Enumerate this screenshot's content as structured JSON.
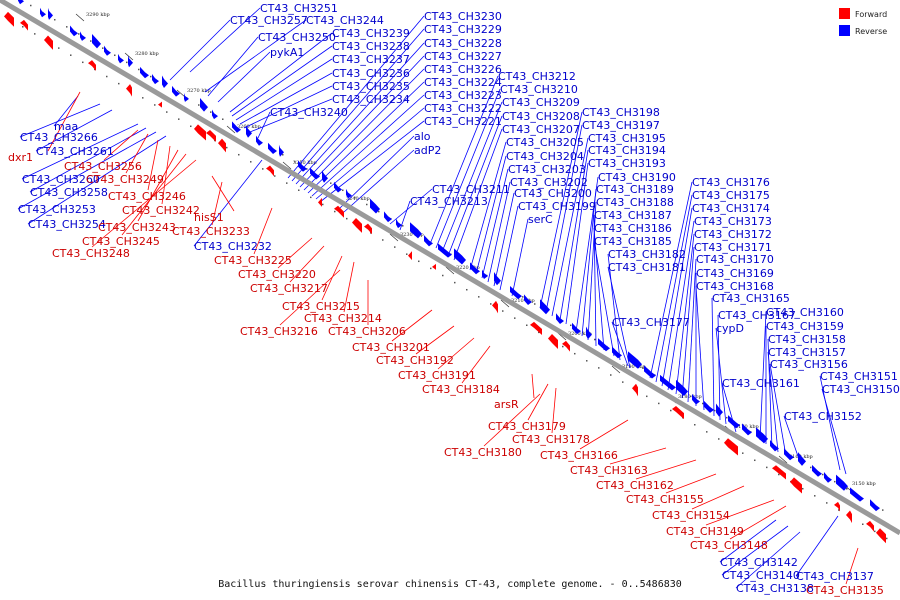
{
  "legend": {
    "items": [
      {
        "label": "Forward",
        "color": "#ff0000"
      },
      {
        "label": "Reverse",
        "color": "#0000ff"
      }
    ]
  },
  "caption": "Bacillus thuringiensis serovar chinensis CT-43, complete genome. - 0..5486830",
  "ticks": [
    "3290 kbp",
    "3280 kbp",
    "3270 kbp",
    "3260 kbp",
    "3250 kbp",
    "3240 kbp",
    "3230 kbp",
    "3220 kbp",
    "3210 kbp",
    "3200 kbp",
    "3190 kbp",
    "3180 kbp",
    "3170 kbp",
    "3160 kbp",
    "3150 kbp"
  ],
  "colors": {
    "forward": "#ff0000",
    "reverse": "#0000ff",
    "backbone": "#9a9a9a",
    "forward_label": "#cc0000",
    "reverse_label": "#0000cc"
  },
  "genes": {
    "reverse": [
      "CT43_CH3251",
      "CT43_CH3257",
      "CT43_CH3244",
      "CT43_CH3250",
      "pykA1",
      "CT43_CH3239",
      "CT43_CH3238",
      "CT43_CH3237",
      "CT43_CH3236",
      "CT43_CH3235",
      "CT43_CH3234",
      "CT43_CH3240",
      "CT43_CH3230",
      "CT43_CH3229",
      "CT43_CH3228",
      "CT43_CH3227",
      "CT43_CH3226",
      "CT43_CH3224",
      "CT43_CH3223",
      "CT43_CH3222",
      "CT43_CH3221",
      "alo",
      "adP2",
      "CT43_CH3211",
      "CT43_CH3213",
      "CT43_CH3212",
      "CT43_CH3210",
      "CT43_CH3209",
      "CT43_CH3208",
      "CT43_CH3207",
      "CT43_CH3205",
      "CT43_CH3204",
      "CT43_CH3203",
      "CT43_CH3202",
      "CT43_CH3200",
      "CT43_CH3199",
      "serC",
      "CT43_CH3198",
      "CT43_CH3197",
      "CT43_CH3195",
      "CT43_CH3194",
      "CT43_CH3193",
      "CT43_CH3190",
      "CT43_CH3189",
      "CT43_CH3188",
      "CT43_CH3187",
      "CT43_CH3186",
      "CT43_CH3185",
      "CT43_CH3182",
      "CT43_CH3181",
      "CT43_CH3176",
      "CT43_CH3175",
      "CT43_CH3174",
      "CT43_CH3173",
      "CT43_CH3172",
      "CT43_CH3171",
      "CT43_CH3170",
      "CT43_CH3169",
      "CT43_CH3168",
      "CT43_CH3165",
      "CT43_CH3177",
      "CT43_CH3167",
      "cypD",
      "CT43_CH3161",
      "CT43_CH3160",
      "CT43_CH3159",
      "CT43_CH3158",
      "CT43_CH3157",
      "CT43_CH3156",
      "CT43_CH3151",
      "CT43_CH3150",
      "CT43_CH3152",
      "maa",
      "CT43_CH3266",
      "CT43_CH3261",
      "CT43_CH3260",
      "CT43_CH3258",
      "CT43_CH3253",
      "CT43_CH3254",
      "CT43_CH3232",
      "CT43_CH3142",
      "CT43_CH3140",
      "CT43_CH3138",
      "CT43_CH3137"
    ],
    "forward": [
      "dxr1",
      "CT43_CH3256",
      "CT43_CH3249",
      "CT43_CH3246",
      "CT43_CH3242",
      "CT43_CH3243",
      "CT43_CH3245",
      "CT43_CH3248",
      "hisS1",
      "CT43_CH3233",
      "CT43_CH3225",
      "CT43_CH3220",
      "CT43_CH3217",
      "CT43_CH3215",
      "CT43_CH3214",
      "CT43_CH3216",
      "CT43_CH3206",
      "CT43_CH3201",
      "CT43_CH3192",
      "CT43_CH3191",
      "CT43_CH3184",
      "arsR",
      "CT43_CH3179",
      "CT43_CH3178",
      "CT43_CH3180",
      "CT43_CH3166",
      "CT43_CH3163",
      "CT43_CH3162",
      "CT43_CH3155",
      "CT43_CH3154",
      "CT43_CH3149",
      "CT43_CH3148",
      "CT43_CH3135"
    ]
  }
}
